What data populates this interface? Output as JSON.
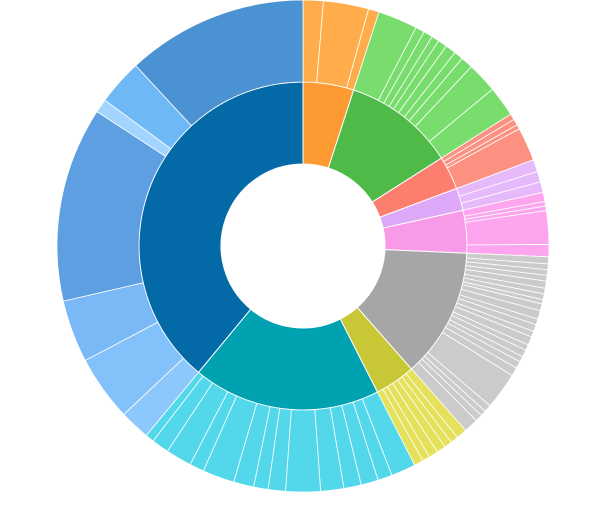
{
  "chart_data": {
    "type": "sunburst",
    "title": "",
    "inner_ring": [
      {
        "value": 5.0,
        "color": "#fd9a31"
      },
      {
        "value": 11.0,
        "color": "#4fba48"
      },
      {
        "value": 3.3,
        "color": "#fb7e6f"
      },
      {
        "value": 2.2,
        "color": "#dca8f7"
      },
      {
        "value": 4.2,
        "color": "#f99ae9"
      },
      {
        "value": 12.8,
        "color": "#a6a6a6"
      },
      {
        "value": 4.0,
        "color": "#c8c736"
      },
      {
        "value": 18.5,
        "color": "#00a1b1"
      },
      {
        "value": 39.0,
        "color": "#0369a7"
      }
    ],
    "outer_ring": [
      {
        "parent": 0,
        "values": [
          1.7,
          3.8,
          0.9
        ],
        "color": "#ffad4c"
      },
      {
        "parent": 1,
        "values": [
          2.6,
          0.6,
          0.6,
          0.5,
          0.6,
          0.7,
          0.6,
          0.8,
          2.0,
          2.0
        ],
        "color": "#78dd6c"
      },
      {
        "parent": 2,
        "values": [
          0.4,
          0.4,
          0.3,
          2.2
        ],
        "color": "#fc9181"
      },
      {
        "parent": 3,
        "values": [
          0.8,
          0.7,
          0.7
        ],
        "color": "#e6b9fb"
      },
      {
        "parent": 4,
        "values": [
          0.6,
          0.3,
          0.3,
          2.2,
          0.8
        ],
        "color": "#fda5ef"
      },
      {
        "parent": 5,
        "values": [
          0.5,
          0.4,
          0.4,
          0.4,
          0.5,
          0.4,
          0.4,
          0.3,
          0.5,
          0.6,
          0.4,
          0.5,
          0.4,
          0.6,
          0.4,
          0.5,
          0.4,
          0.5,
          0.6,
          2.6,
          0.5,
          0.4,
          0.5,
          1.0
        ],
        "color": "#cbcbcb"
      },
      {
        "parent": 6,
        "values": [
          0.7,
          0.5,
          0.5,
          0.6,
          0.6,
          0.5,
          0.6
        ],
        "color": "#e5e15a"
      },
      {
        "parent": 7,
        "values": [
          1.7,
          1.0,
          1.2,
          1.2,
          1.6,
          2.4,
          1.2,
          1.0,
          1.4,
          2.2,
          1.0,
          1.8,
          1.2,
          0.6
        ],
        "color": "#52d8ea"
      },
      {
        "parent": 8,
        "values": [
          2.0,
          4.3,
          4.1,
          12.8,
          0.9,
          3.0,
          11.9
        ],
        "color": "#6aacea"
      }
    ],
    "outer_shades": {
      "8": [
        "#8dc8fd",
        "#83c1fb",
        "#7ab9f6",
        "#5e9fe2",
        "#a3d4ff",
        "#6eb8f6",
        "#4b92d3"
      ]
    }
  }
}
